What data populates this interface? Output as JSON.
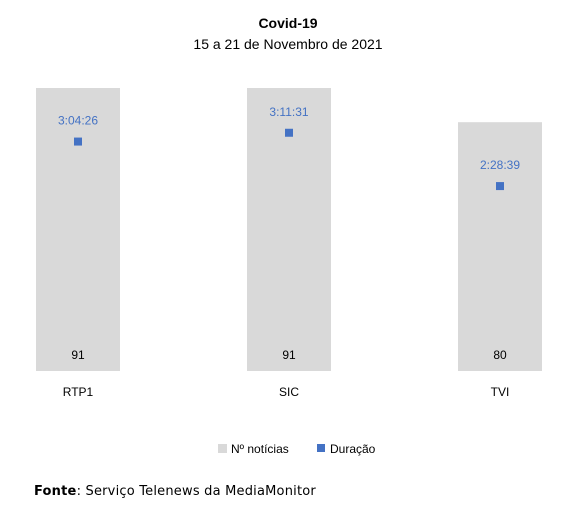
{
  "chart_data": {
    "type": "bar",
    "title": "Covid-19",
    "subtitle": "15 a 21 de Novembro de 2021",
    "categories": [
      "RTP1",
      "SIC",
      "TVI"
    ],
    "series": [
      {
        "name": "Nº notícias",
        "kind": "bar",
        "values": [
          91,
          91,
          80
        ],
        "labels": [
          "91",
          "91",
          "80"
        ],
        "color": "#d9d9d9"
      },
      {
        "name": "Duração",
        "kind": "marker",
        "values": [
          "3:04:26",
          "3:11:31",
          "2:28:39"
        ],
        "labels": [
          "3:04:26",
          "3:11:31",
          "2:28:39"
        ],
        "color": "#4472c4"
      }
    ],
    "ylim": [
      0,
      100
    ],
    "grid": false,
    "legend_position": "bottom"
  },
  "footer": {
    "source_label": "Fonte",
    "source_text": ": Serviço Telenews da MediaMonitor"
  }
}
